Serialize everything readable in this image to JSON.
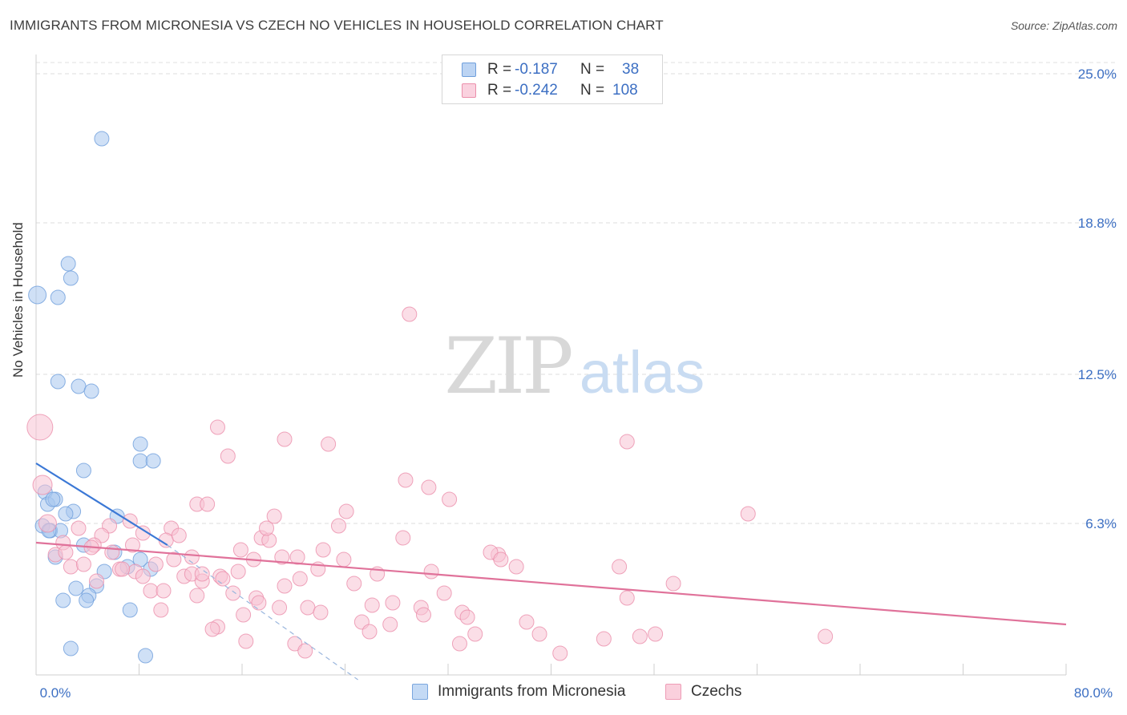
{
  "title": "IMMIGRANTS FROM MICRONESIA VS CZECH NO VEHICLES IN HOUSEHOLD CORRELATION CHART",
  "source": "Source: ZipAtlas.com",
  "watermark": {
    "zip": "ZIP",
    "atlas": "atlas"
  },
  "legend_top": {
    "rows": [
      {
        "r_label": "R =",
        "r_value": "-0.187",
        "n_label": "N =",
        "n_value": "38",
        "color": "#a8c6ef",
        "border": "#6f9fdc"
      },
      {
        "r_label": "R =",
        "r_value": "-0.242",
        "n_label": "N =",
        "n_value": "108",
        "color": "#f8c3d3",
        "border": "#eb8fab"
      }
    ]
  },
  "legend_bottom": [
    {
      "label": "Immigrants from Micronesia",
      "color": "#c4daf5",
      "border": "#7aa6de"
    },
    {
      "label": "Czechs",
      "color": "#fad0dd",
      "border": "#ee9cb6"
    }
  ],
  "chart_data": {
    "type": "scatter",
    "title": "IMMIGRANTS FROM MICRONESIA VS CZECH NO VEHICLES IN HOUSEHOLD CORRELATION CHART",
    "xlabel": "",
    "ylabel": "No Vehicles in Household",
    "xlim": [
      0,
      80
    ],
    "ylim": [
      0,
      25.6
    ],
    "x_tick_labels": [
      {
        "value": 0,
        "label": "0.0%"
      },
      {
        "value": 80,
        "label": "80.0%"
      }
    ],
    "y_tick_labels": [
      {
        "value": 6.3,
        "label": "6.3%"
      },
      {
        "value": 12.5,
        "label": "12.5%"
      },
      {
        "value": 18.8,
        "label": "18.8%"
      },
      {
        "value": 25.0,
        "label": "25.0%"
      }
    ],
    "x_minor_ticks": [
      0,
      8,
      16,
      24,
      32,
      40,
      48,
      56,
      64,
      72,
      80
    ],
    "grid": true,
    "series": [
      {
        "name": "Immigrants from Micronesia",
        "color": "#a8c6ef",
        "stroke": "#6f9fdc",
        "trend": {
          "x0": 0,
          "y0": 8.8,
          "x1": 10.2,
          "y1": 5.4,
          "color": "#3b78d6"
        },
        "trend_ext": {
          "x0": 10.2,
          "y0": 5.4,
          "x1": 25.0,
          "y1": -0.2,
          "color": "#9ab6dd"
        },
        "points": [
          [
            5.1,
            22.3
          ],
          [
            2.5,
            17.1
          ],
          [
            2.7,
            16.5
          ],
          [
            0.1,
            15.8
          ],
          [
            1.7,
            15.7
          ],
          [
            1.7,
            12.2
          ],
          [
            3.3,
            12.0
          ],
          [
            4.3,
            11.8
          ],
          [
            8.1,
            9.6
          ],
          [
            8.1,
            8.9
          ],
          [
            9.1,
            8.9
          ],
          [
            3.7,
            8.5
          ],
          [
            0.7,
            7.6
          ],
          [
            0.9,
            7.1
          ],
          [
            1.5,
            7.3
          ],
          [
            1.3,
            7.3
          ],
          [
            2.9,
            6.8
          ],
          [
            2.3,
            6.7
          ],
          [
            6.3,
            6.6
          ],
          [
            0.5,
            6.2
          ],
          [
            1.1,
            6.0
          ],
          [
            1.9,
            6.0
          ],
          [
            1.5,
            4.9
          ],
          [
            3.7,
            5.4
          ],
          [
            6.1,
            5.1
          ],
          [
            8.1,
            4.8
          ],
          [
            7.1,
            4.5
          ],
          [
            5.3,
            4.3
          ],
          [
            4.7,
            3.7
          ],
          [
            3.1,
            3.6
          ],
          [
            4.1,
            3.3
          ],
          [
            2.1,
            3.1
          ],
          [
            3.9,
            3.1
          ],
          [
            7.3,
            2.7
          ],
          [
            2.7,
            1.1
          ],
          [
            8.5,
            0.8
          ],
          [
            8.9,
            4.4
          ],
          [
            1.0,
            6.0
          ]
        ],
        "sizes": [
          9,
          9,
          9,
          11,
          9,
          9,
          9,
          9,
          9,
          9,
          9,
          9,
          9,
          9,
          9,
          9,
          9,
          9,
          9,
          9,
          9,
          9,
          9,
          9,
          9,
          9,
          9,
          9,
          9,
          9,
          9,
          9,
          9,
          9,
          9,
          9,
          9,
          9
        ]
      },
      {
        "name": "Czechs",
        "color": "#f8c3d3",
        "stroke": "#eb8fab",
        "trend": {
          "x0": 0,
          "y0": 5.5,
          "x1": 80,
          "y1": 2.1,
          "color": "#e0729a"
        },
        "points": [
          [
            0.3,
            10.3
          ],
          [
            0.5,
            7.9
          ],
          [
            29.0,
            15.0
          ],
          [
            14.1,
            10.3
          ],
          [
            19.3,
            9.8
          ],
          [
            22.7,
            9.6
          ],
          [
            45.9,
            9.7
          ],
          [
            14.9,
            9.1
          ],
          [
            28.7,
            8.1
          ],
          [
            30.5,
            7.8
          ],
          [
            32.1,
            7.3
          ],
          [
            12.5,
            7.1
          ],
          [
            13.3,
            7.1
          ],
          [
            24.1,
            6.8
          ],
          [
            18.5,
            6.6
          ],
          [
            55.3,
            6.7
          ],
          [
            0.9,
            6.3
          ],
          [
            10.5,
            6.1
          ],
          [
            7.3,
            6.4
          ],
          [
            5.7,
            6.2
          ],
          [
            3.3,
            6.1
          ],
          [
            5.1,
            5.8
          ],
          [
            8.3,
            5.9
          ],
          [
            10.1,
            5.6
          ],
          [
            11.1,
            5.8
          ],
          [
            17.5,
            5.7
          ],
          [
            18.1,
            5.6
          ],
          [
            28.5,
            5.7
          ],
          [
            2.1,
            5.5
          ],
          [
            4.5,
            5.4
          ],
          [
            7.5,
            5.4
          ],
          [
            1.5,
            5.0
          ],
          [
            2.3,
            5.1
          ],
          [
            12.1,
            4.9
          ],
          [
            15.9,
            5.2
          ],
          [
            16.9,
            4.8
          ],
          [
            19.1,
            4.9
          ],
          [
            20.3,
            4.9
          ],
          [
            22.3,
            5.2
          ],
          [
            23.9,
            4.8
          ],
          [
            35.9,
            5.0
          ],
          [
            35.3,
            5.1
          ],
          [
            2.7,
            4.5
          ],
          [
            3.7,
            4.6
          ],
          [
            6.5,
            4.4
          ],
          [
            7.7,
            4.3
          ],
          [
            9.3,
            4.6
          ],
          [
            6.7,
            4.4
          ],
          [
            8.3,
            4.1
          ],
          [
            11.5,
            4.1
          ],
          [
            12.1,
            4.2
          ],
          [
            14.3,
            4.1
          ],
          [
            15.7,
            4.3
          ],
          [
            20.5,
            4.0
          ],
          [
            21.9,
            4.4
          ],
          [
            24.7,
            3.8
          ],
          [
            30.7,
            4.3
          ],
          [
            37.3,
            4.5
          ],
          [
            45.3,
            4.5
          ],
          [
            49.5,
            3.8
          ],
          [
            4.7,
            3.9
          ],
          [
            8.9,
            3.5
          ],
          [
            9.9,
            3.5
          ],
          [
            12.5,
            3.3
          ],
          [
            12.9,
            3.9
          ],
          [
            15.3,
            3.4
          ],
          [
            17.1,
            3.2
          ],
          [
            17.3,
            3.0
          ],
          [
            19.3,
            3.7
          ],
          [
            26.1,
            2.9
          ],
          [
            27.7,
            3.0
          ],
          [
            31.7,
            3.4
          ],
          [
            45.9,
            3.2
          ],
          [
            9.7,
            2.7
          ],
          [
            16.1,
            2.5
          ],
          [
            18.9,
            2.8
          ],
          [
            21.1,
            2.8
          ],
          [
            22.1,
            2.6
          ],
          [
            29.9,
            2.8
          ],
          [
            30.1,
            2.5
          ],
          [
            33.1,
            2.6
          ],
          [
            33.5,
            2.4
          ],
          [
            25.3,
            2.2
          ],
          [
            25.9,
            1.8
          ],
          [
            27.5,
            2.1
          ],
          [
            38.1,
            2.2
          ],
          [
            14.1,
            2.0
          ],
          [
            13.7,
            1.9
          ],
          [
            34.1,
            1.7
          ],
          [
            39.1,
            1.7
          ],
          [
            44.1,
            1.5
          ],
          [
            46.9,
            1.6
          ],
          [
            16.3,
            1.4
          ],
          [
            20.1,
            1.3
          ],
          [
            32.9,
            1.3
          ],
          [
            48.1,
            1.7
          ],
          [
            61.3,
            1.6
          ],
          [
            20.9,
            1.0
          ],
          [
            40.7,
            0.9
          ],
          [
            12.9,
            4.2
          ],
          [
            5.9,
            5.1
          ],
          [
            4.3,
            5.3
          ],
          [
            10.7,
            4.8
          ],
          [
            14.5,
            4.0
          ],
          [
            26.5,
            4.2
          ],
          [
            23.5,
            6.2
          ],
          [
            17.9,
            6.1
          ],
          [
            36.1,
            4.8
          ]
        ],
        "sizes": [
          16,
          12,
          9,
          9,
          9,
          9,
          9,
          9,
          9,
          9,
          9,
          9,
          9,
          9,
          9,
          9,
          11,
          9,
          9,
          9,
          9,
          9,
          9,
          9,
          9,
          9,
          9,
          9,
          9,
          9,
          9,
          9,
          9,
          9,
          9,
          9,
          9,
          9,
          9,
          9,
          9,
          9,
          9,
          9,
          9,
          9,
          9,
          9,
          9,
          9,
          9,
          9,
          9,
          9,
          9,
          9,
          9,
          9,
          9,
          9,
          9,
          9,
          9,
          9,
          9,
          9,
          9,
          9,
          9,
          9,
          9,
          9,
          9,
          9,
          9,
          9,
          9,
          9,
          9,
          9,
          9,
          9,
          9,
          9,
          9,
          9,
          9,
          9,
          9,
          9,
          9,
          9,
          9,
          9,
          9,
          9,
          9,
          9,
          9,
          9,
          9,
          9,
          9,
          9,
          9,
          9,
          9,
          9
        ]
      }
    ]
  }
}
